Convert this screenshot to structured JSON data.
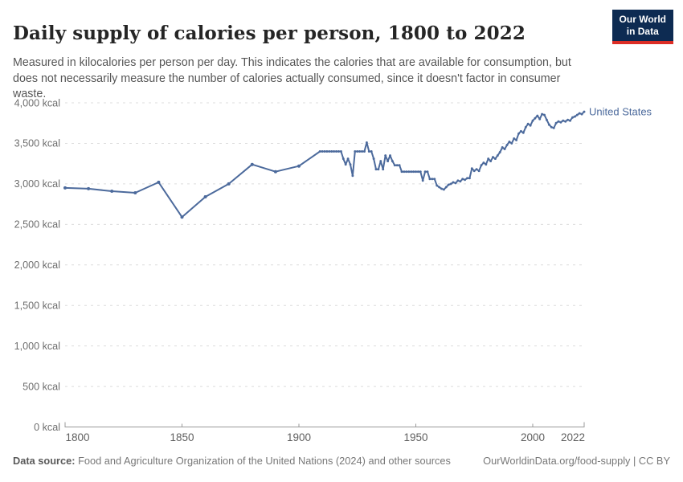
{
  "header": {
    "title": "Daily supply of calories per person, 1800 to 2022",
    "subtitle": "Measured in kilocalories per person per day. This indicates the calories that are available for consumption, but does not necessarily measure the number of calories actually consumed, since it doesn't factor in consumer waste.",
    "logo": {
      "line1": "Our World",
      "line2": "in Data",
      "bg_color": "#0d2b52",
      "accent_color": "#dc2d25"
    }
  },
  "footer": {
    "source_label": "Data source:",
    "source_text": " Food and Agriculture Organization of the United Nations (2024) and other sources",
    "credit": "OurWorldinData.org/food-supply | CC BY"
  },
  "chart_data": {
    "type": "line",
    "title": "Daily supply of calories per person, 1800 to 2022",
    "xlabel": "",
    "ylabel": "",
    "y_unit": "kcal",
    "xlim": [
      1800,
      2022
    ],
    "ylim": [
      0,
      4000
    ],
    "x_ticks": [
      1800,
      1850,
      1900,
      1950,
      2000,
      2022
    ],
    "y_ticks": [
      0,
      500,
      1000,
      1500,
      2000,
      2500,
      3000,
      3500,
      4000
    ],
    "y_tick_labels": [
      "0 kcal",
      "500 kcal",
      "1,000 kcal",
      "1,500 kcal",
      "2,000 kcal",
      "2,500 kcal",
      "3,000 kcal",
      "3,500 kcal",
      "4,000 kcal"
    ],
    "grid": "horizontal-dashed",
    "legend_position": "end-of-line",
    "series": [
      {
        "name": "United States",
        "color": "#4C6A9C",
        "points": [
          [
            1800,
            2950
          ],
          [
            1810,
            2940
          ],
          [
            1820,
            2910
          ],
          [
            1830,
            2890
          ],
          [
            1840,
            3020
          ],
          [
            1850,
            2590
          ],
          [
            1860,
            2840
          ],
          [
            1870,
            3000
          ],
          [
            1880,
            3240
          ],
          [
            1890,
            3150
          ],
          [
            1900,
            3220
          ],
          [
            1909,
            3400
          ],
          [
            1910,
            3400
          ],
          [
            1911,
            3400
          ],
          [
            1912,
            3400
          ],
          [
            1913,
            3400
          ],
          [
            1914,
            3400
          ],
          [
            1915,
            3400
          ],
          [
            1916,
            3400
          ],
          [
            1917,
            3400
          ],
          [
            1918,
            3400
          ],
          [
            1919,
            3310
          ],
          [
            1920,
            3240
          ],
          [
            1921,
            3310
          ],
          [
            1922,
            3240
          ],
          [
            1923,
            3100
          ],
          [
            1924,
            3400
          ],
          [
            1925,
            3400
          ],
          [
            1926,
            3400
          ],
          [
            1927,
            3400
          ],
          [
            1928,
            3400
          ],
          [
            1929,
            3510
          ],
          [
            1930,
            3400
          ],
          [
            1931,
            3400
          ],
          [
            1932,
            3310
          ],
          [
            1933,
            3180
          ],
          [
            1934,
            3180
          ],
          [
            1935,
            3280
          ],
          [
            1936,
            3180
          ],
          [
            1937,
            3350
          ],
          [
            1938,
            3280
          ],
          [
            1939,
            3350
          ],
          [
            1940,
            3280
          ],
          [
            1941,
            3230
          ],
          [
            1942,
            3230
          ],
          [
            1943,
            3230
          ],
          [
            1944,
            3150
          ],
          [
            1945,
            3150
          ],
          [
            1946,
            3150
          ],
          [
            1947,
            3150
          ],
          [
            1948,
            3150
          ],
          [
            1949,
            3150
          ],
          [
            1950,
            3150
          ],
          [
            1951,
            3150
          ],
          [
            1952,
            3150
          ],
          [
            1953,
            3040
          ],
          [
            1954,
            3150
          ],
          [
            1955,
            3150
          ],
          [
            1956,
            3060
          ],
          [
            1957,
            3060
          ],
          [
            1958,
            3060
          ],
          [
            1959,
            2980
          ],
          [
            1960,
            2960
          ],
          [
            1961,
            2940
          ],
          [
            1962,
            2930
          ],
          [
            1963,
            2960
          ],
          [
            1964,
            2990
          ],
          [
            1965,
            3000
          ],
          [
            1966,
            3020
          ],
          [
            1967,
            3010
          ],
          [
            1968,
            3040
          ],
          [
            1969,
            3030
          ],
          [
            1970,
            3060
          ],
          [
            1971,
            3050
          ],
          [
            1972,
            3070
          ],
          [
            1973,
            3070
          ],
          [
            1974,
            3190
          ],
          [
            1975,
            3160
          ],
          [
            1976,
            3180
          ],
          [
            1977,
            3160
          ],
          [
            1978,
            3230
          ],
          [
            1979,
            3260
          ],
          [
            1980,
            3240
          ],
          [
            1981,
            3310
          ],
          [
            1982,
            3280
          ],
          [
            1983,
            3330
          ],
          [
            1984,
            3310
          ],
          [
            1985,
            3350
          ],
          [
            1986,
            3390
          ],
          [
            1987,
            3450
          ],
          [
            1988,
            3430
          ],
          [
            1989,
            3480
          ],
          [
            1990,
            3520
          ],
          [
            1991,
            3500
          ],
          [
            1992,
            3560
          ],
          [
            1993,
            3540
          ],
          [
            1994,
            3620
          ],
          [
            1995,
            3650
          ],
          [
            1996,
            3630
          ],
          [
            1997,
            3700
          ],
          [
            1998,
            3740
          ],
          [
            1999,
            3720
          ],
          [
            2000,
            3780
          ],
          [
            2001,
            3810
          ],
          [
            2002,
            3840
          ],
          [
            2003,
            3800
          ],
          [
            2004,
            3860
          ],
          [
            2005,
            3850
          ],
          [
            2006,
            3790
          ],
          [
            2007,
            3730
          ],
          [
            2008,
            3700
          ],
          [
            2009,
            3690
          ],
          [
            2010,
            3750
          ],
          [
            2011,
            3770
          ],
          [
            2012,
            3760
          ],
          [
            2013,
            3780
          ],
          [
            2014,
            3770
          ],
          [
            2015,
            3790
          ],
          [
            2016,
            3780
          ],
          [
            2017,
            3820
          ],
          [
            2018,
            3830
          ],
          [
            2019,
            3850
          ],
          [
            2020,
            3870
          ],
          [
            2021,
            3860
          ],
          [
            2022,
            3890
          ]
        ]
      }
    ]
  }
}
